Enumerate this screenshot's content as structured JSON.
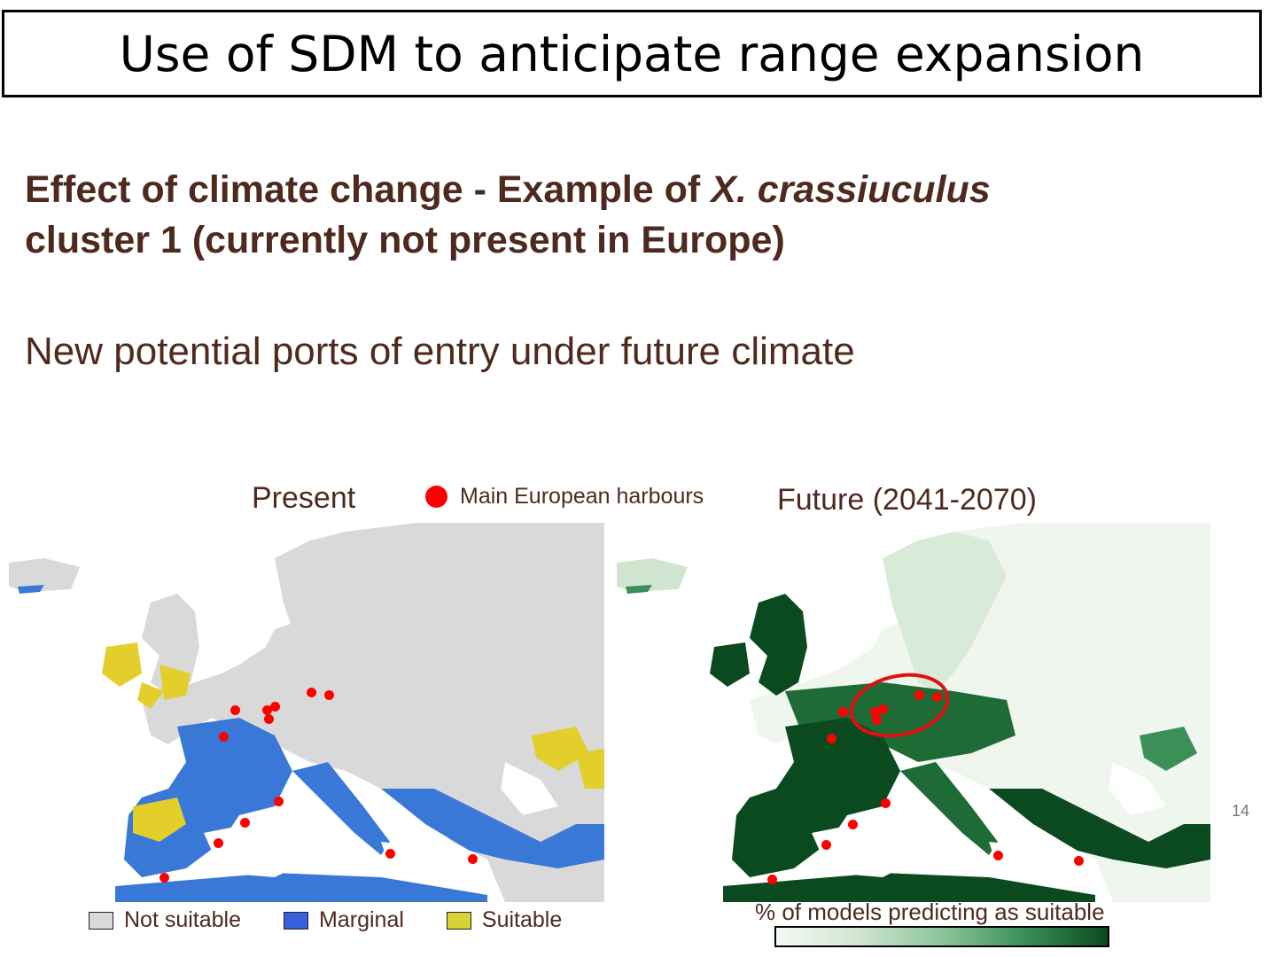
{
  "slide": {
    "title": "Use of SDM to anticipate range expansion",
    "heading_prefix": "Effect of climate change - Example of ",
    "heading_species": "X. crassiuculus",
    "heading_line2": "cluster 1 (currently not present in Europe)",
    "subheading": "New potential ports of entry under future climate",
    "page_number": "14"
  },
  "maps": {
    "present_title": "Present",
    "future_title": "Future (2041-2070)",
    "harbour_legend": "Main European harbours"
  },
  "present_legend": {
    "items": [
      {
        "label": "Not suitable",
        "color": "#d9d9d9"
      },
      {
        "label": "Marginal",
        "color": "#3a78d8"
      },
      {
        "label": "Suitable",
        "color": "#e3cf2c"
      }
    ]
  },
  "future_legend": {
    "label": "% of models predicting as suitable"
  },
  "colors": {
    "text_brown": "#4e2a1e",
    "harbour_red": "#ff0000",
    "ocean": "#ffffff",
    "future_low": "#eef6ee",
    "future_high": "#0b4a1f"
  }
}
